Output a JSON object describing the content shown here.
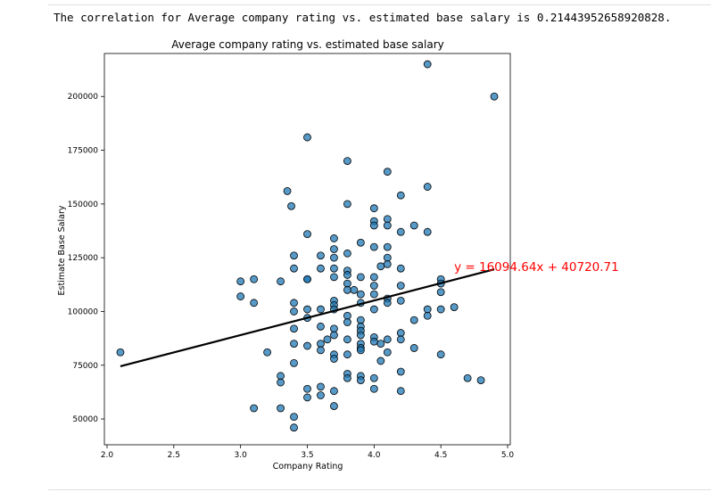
{
  "output": {
    "correlation_text": "The correlation for Average company rating vs. estimated base salary is 0.21443952658920828."
  },
  "chart_data": {
    "type": "scatter",
    "title": "Average company rating vs. estimated base salary",
    "xlabel": "Company Rating",
    "ylabel": "Estimate Base Salary",
    "xlim": [
      1.98,
      5.02
    ],
    "ylim": [
      38000,
      220000
    ],
    "xticks": [
      2.0,
      2.5,
      3.0,
      3.5,
      4.0,
      4.5,
      5.0
    ],
    "xtick_labels": [
      "2.0",
      "2.5",
      "3.0",
      "3.5",
      "4.0",
      "4.5",
      "5.0"
    ],
    "yticks": [
      50000,
      75000,
      100000,
      125000,
      150000,
      175000,
      200000
    ],
    "ytick_labels": [
      "50000",
      "75000",
      "100000",
      "125000",
      "150000",
      "175000",
      "200000"
    ],
    "grid": false,
    "point_color": "#1f77b4",
    "line_color": "#000000",
    "annotation_color": "#ff0000",
    "regression": {
      "slope": 16094.64,
      "intercept": 40720.71,
      "x_range": [
        2.1,
        4.9
      ],
      "equation_label": "y = 16094.64x + 40720.71",
      "label_x": 4.6,
      "label_y": 121000
    },
    "points": [
      [
        2.1,
        81000
      ],
      [
        3.0,
        114000
      ],
      [
        3.0,
        107000
      ],
      [
        3.1,
        115000
      ],
      [
        3.1,
        104000
      ],
      [
        3.1,
        55000
      ],
      [
        3.2,
        81000
      ],
      [
        3.3,
        114000
      ],
      [
        3.3,
        70000
      ],
      [
        3.3,
        67000
      ],
      [
        3.3,
        55000
      ],
      [
        3.35,
        156000
      ],
      [
        3.38,
        149000
      ],
      [
        3.4,
        126000
      ],
      [
        3.4,
        120000
      ],
      [
        3.4,
        104000
      ],
      [
        3.4,
        100000
      ],
      [
        3.4,
        92000
      ],
      [
        3.4,
        85000
      ],
      [
        3.4,
        76000
      ],
      [
        3.4,
        51000
      ],
      [
        3.4,
        46000
      ],
      [
        3.5,
        181000
      ],
      [
        3.5,
        136000
      ],
      [
        3.5,
        115000
      ],
      [
        3.5,
        115000
      ],
      [
        3.5,
        101000
      ],
      [
        3.5,
        97000
      ],
      [
        3.5,
        84000
      ],
      [
        3.5,
        64000
      ],
      [
        3.5,
        60000
      ],
      [
        3.6,
        126000
      ],
      [
        3.6,
        120000
      ],
      [
        3.6,
        101000
      ],
      [
        3.6,
        93000
      ],
      [
        3.6,
        85000
      ],
      [
        3.6,
        82000
      ],
      [
        3.6,
        65000
      ],
      [
        3.6,
        61000
      ],
      [
        3.65,
        87000
      ],
      [
        3.7,
        134000
      ],
      [
        3.7,
        129000
      ],
      [
        3.7,
        125000
      ],
      [
        3.7,
        120000
      ],
      [
        3.7,
        116000
      ],
      [
        3.7,
        105000
      ],
      [
        3.7,
        103000
      ],
      [
        3.7,
        101000
      ],
      [
        3.7,
        92000
      ],
      [
        3.7,
        89000
      ],
      [
        3.7,
        80000
      ],
      [
        3.7,
        78000
      ],
      [
        3.7,
        63000
      ],
      [
        3.7,
        56000
      ],
      [
        3.8,
        170000
      ],
      [
        3.8,
        150000
      ],
      [
        3.8,
        127000
      ],
      [
        3.8,
        119000
      ],
      [
        3.8,
        117000
      ],
      [
        3.8,
        113000
      ],
      [
        3.8,
        110000
      ],
      [
        3.8,
        98000
      ],
      [
        3.8,
        95000
      ],
      [
        3.8,
        87000
      ],
      [
        3.8,
        80000
      ],
      [
        3.8,
        71000
      ],
      [
        3.8,
        69000
      ],
      [
        3.85,
        110000
      ],
      [
        3.9,
        132000
      ],
      [
        3.9,
        116000
      ],
      [
        3.9,
        108000
      ],
      [
        3.9,
        104000
      ],
      [
        3.9,
        96000
      ],
      [
        3.9,
        93000
      ],
      [
        3.9,
        91000
      ],
      [
        3.9,
        89000
      ],
      [
        3.9,
        85000
      ],
      [
        3.9,
        83000
      ],
      [
        3.9,
        82000
      ],
      [
        3.9,
        70000
      ],
      [
        3.9,
        68000
      ],
      [
        4.0,
        148000
      ],
      [
        4.0,
        142000
      ],
      [
        4.0,
        140000
      ],
      [
        4.0,
        130000
      ],
      [
        4.0,
        116000
      ],
      [
        4.0,
        112000
      ],
      [
        4.0,
        108000
      ],
      [
        4.0,
        101000
      ],
      [
        4.0,
        88000
      ],
      [
        4.0,
        86000
      ],
      [
        4.0,
        69000
      ],
      [
        4.0,
        64000
      ],
      [
        4.05,
        121000
      ],
      [
        4.05,
        85000
      ],
      [
        4.05,
        77000
      ],
      [
        4.1,
        165000
      ],
      [
        4.1,
        143000
      ],
      [
        4.1,
        140000
      ],
      [
        4.1,
        130000
      ],
      [
        4.1,
        125000
      ],
      [
        4.1,
        122000
      ],
      [
        4.1,
        106000
      ],
      [
        4.1,
        104000
      ],
      [
        4.1,
        87000
      ],
      [
        4.1,
        81000
      ],
      [
        4.2,
        154000
      ],
      [
        4.2,
        137000
      ],
      [
        4.2,
        120000
      ],
      [
        4.2,
        112000
      ],
      [
        4.2,
        105000
      ],
      [
        4.2,
        90000
      ],
      [
        4.2,
        87000
      ],
      [
        4.2,
        72000
      ],
      [
        4.2,
        63000
      ],
      [
        4.3,
        140000
      ],
      [
        4.3,
        96000
      ],
      [
        4.3,
        83000
      ],
      [
        4.4,
        215000
      ],
      [
        4.4,
        158000
      ],
      [
        4.4,
        137000
      ],
      [
        4.4,
        101000
      ],
      [
        4.4,
        98000
      ],
      [
        4.5,
        115000
      ],
      [
        4.5,
        113000
      ],
      [
        4.5,
        109000
      ],
      [
        4.5,
        101000
      ],
      [
        4.5,
        80000
      ],
      [
        4.6,
        102000
      ],
      [
        4.7,
        69000
      ],
      [
        4.8,
        68000
      ],
      [
        4.9,
        200000
      ]
    ]
  }
}
